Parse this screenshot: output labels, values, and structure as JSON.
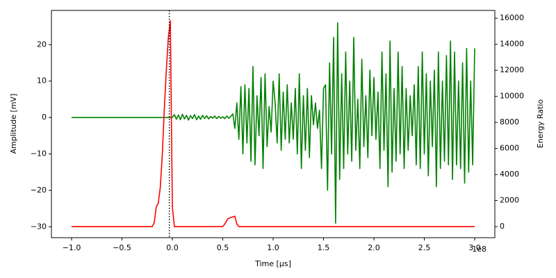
{
  "chart_data": {
    "type": "line",
    "xlabel": "Time [µs]",
    "ylabel": "Amplitude [mV]",
    "y2label": "Energy Ratio",
    "x_offset_label": "1e8",
    "xlim": [
      -1.2,
      3.2
    ],
    "ylim": [
      -33,
      29.4
    ],
    "y2lim": [
      -850,
      16600
    ],
    "xticks": [
      {
        "value": -1.0,
        "label": "−1.0"
      },
      {
        "value": -0.5,
        "label": "−0.5"
      },
      {
        "value": 0.0,
        "label": "0.0"
      },
      {
        "value": 0.5,
        "label": "0.5"
      },
      {
        "value": 1.0,
        "label": "1.0"
      },
      {
        "value": 1.5,
        "label": "1.5"
      },
      {
        "value": 2.0,
        "label": "2.0"
      },
      {
        "value": 2.5,
        "label": "2.5"
      },
      {
        "value": 3.0,
        "label": "3.0"
      }
    ],
    "yticks": [
      {
        "value": -30,
        "label": "−30"
      },
      {
        "value": -20,
        "label": "−20"
      },
      {
        "value": -10,
        "label": "−10"
      },
      0,
      10,
      20
    ],
    "y2ticks": [
      0,
      2000,
      4000,
      6000,
      8000,
      10000,
      12000,
      14000,
      16000
    ],
    "ylabel_color": "#008000",
    "y2label_color": "#ff0000",
    "vline_x": -0.03,
    "vline_color": "#000000",
    "series": [
      {
        "color": "#008000",
        "axis": "y",
        "x": [
          -1.0,
          0.0,
          0.02,
          0.04,
          0.06,
          0.08,
          0.1,
          0.12,
          0.14,
          0.16,
          0.18,
          0.2,
          0.22,
          0.24,
          0.26,
          0.28,
          0.3,
          0.32,
          0.34,
          0.36,
          0.38,
          0.4,
          0.42,
          0.44,
          0.46,
          0.48,
          0.5,
          0.52,
          0.54,
          0.56,
          0.58,
          0.6,
          0.62,
          0.64,
          0.66,
          0.68,
          0.7,
          0.72,
          0.74,
          0.76,
          0.78,
          0.8,
          0.82,
          0.84,
          0.86,
          0.88,
          0.9,
          0.92,
          0.94,
          0.96,
          0.98,
          1.0,
          1.02,
          1.04,
          1.06,
          1.08,
          1.1,
          1.12,
          1.14,
          1.16,
          1.18,
          1.2,
          1.22,
          1.24,
          1.26,
          1.28,
          1.3,
          1.32,
          1.34,
          1.36,
          1.38,
          1.4,
          1.42,
          1.44,
          1.46,
          1.48,
          1.5,
          1.52,
          1.54,
          1.56,
          1.58,
          1.6,
          1.62,
          1.64,
          1.66,
          1.68,
          1.7,
          1.72,
          1.74,
          1.76,
          1.78,
          1.8,
          1.82,
          1.84,
          1.86,
          1.88,
          1.9,
          1.92,
          1.94,
          1.96,
          1.98,
          2.0,
          2.02,
          2.04,
          2.06,
          2.08,
          2.1,
          2.12,
          2.14,
          2.16,
          2.18,
          2.2,
          2.22,
          2.24,
          2.26,
          2.28,
          2.3,
          2.32,
          2.34,
          2.36,
          2.38,
          2.4,
          2.42,
          2.44,
          2.46,
          2.48,
          2.5,
          2.52,
          2.54,
          2.56,
          2.58,
          2.6,
          2.62,
          2.64,
          2.66,
          2.68,
          2.7,
          2.72,
          2.74,
          2.76,
          2.78,
          2.8,
          2.82,
          2.84,
          2.86,
          2.88,
          2.9,
          2.92,
          2.94,
          2.96,
          2.98,
          3.0
        ],
        "values": [
          0,
          0,
          0.8,
          -0.5,
          0.7,
          -0.6,
          0.9,
          -0.4,
          0.6,
          -0.7,
          0.5,
          -0.3,
          0.8,
          -0.6,
          0.4,
          -0.5,
          0.6,
          -0.3,
          0.5,
          -0.4,
          0.3,
          -0.2,
          0.4,
          -0.3,
          0.3,
          -0.2,
          0.2,
          -0.3,
          0.4,
          -0.2,
          0.3,
          1.0,
          -3,
          4,
          -6,
          8.5,
          -10,
          9,
          -7,
          8,
          -12,
          14,
          -13,
          6,
          -5,
          11,
          -14,
          12,
          -8,
          3,
          -4,
          10,
          4,
          -7,
          12,
          -9,
          7,
          -6,
          9,
          -7,
          4,
          -6,
          8,
          -10,
          12,
          -14,
          6,
          -9,
          8,
          -11,
          6,
          -2,
          4,
          -3,
          2,
          -14,
          8,
          9,
          -20,
          15,
          -10,
          22,
          -29,
          26,
          -17,
          12,
          -14,
          18,
          -10,
          10,
          -12,
          22,
          -9,
          5,
          -14,
          16,
          -8,
          6,
          -11,
          13,
          -5,
          11,
          -6,
          7,
          -14,
          18,
          -9,
          12,
          -19,
          21,
          -15,
          8,
          -12,
          18,
          -10,
          14,
          -14,
          8,
          -9,
          6,
          -5,
          9,
          -13,
          14,
          -14,
          18,
          -10,
          12,
          -16,
          10,
          -8,
          13,
          -19,
          18,
          -14,
          10,
          -12,
          17,
          -13,
          21,
          -17,
          18,
          -13,
          10,
          -14,
          15,
          -18,
          19,
          -15,
          10,
          -13,
          19
        ]
      },
      {
        "color": "#ff0000",
        "axis": "y2",
        "x": [
          -1.0,
          -0.2,
          -0.18,
          -0.16,
          -0.14,
          -0.12,
          -0.1,
          -0.08,
          -0.06,
          -0.04,
          -0.02,
          0.0,
          0.02,
          0.1,
          0.5,
          0.52,
          0.55,
          0.58,
          0.62,
          0.64,
          0.66,
          0.7,
          3.0
        ],
        "values": [
          0,
          0,
          300,
          1500,
          1800,
          3000,
          5500,
          9000,
          12000,
          14500,
          15800,
          1500,
          0,
          0,
          0,
          200,
          600,
          700,
          800,
          200,
          0,
          0,
          0
        ]
      }
    ]
  }
}
